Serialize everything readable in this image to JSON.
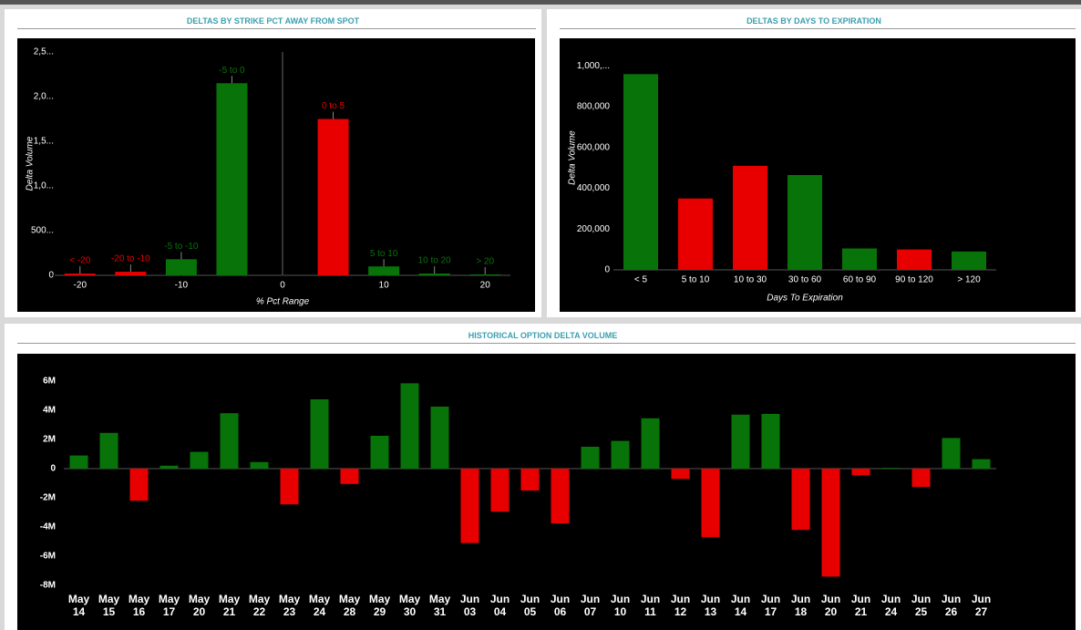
{
  "chart_data": [
    {
      "type": "bar",
      "title": "DELTAS BY STRIKE PCT AWAY FROM SPOT",
      "x_label": "% Pct Range",
      "y_label": "Delta Volume",
      "x": [
        -20,
        -15,
        -10,
        -5,
        5,
        10,
        15,
        20
      ],
      "bar_labels": [
        "< -20",
        "-20 to -10",
        "-5 to -10",
        "-5 to 0",
        "0 to 5",
        "5 to 10",
        "10 to 20",
        "> 20"
      ],
      "values": [
        20000,
        40000,
        180000,
        2150000,
        1750000,
        100000,
        20000,
        10000
      ],
      "colors": [
        "#e80000",
        "#e80000",
        "#087308",
        "#087308",
        "#e80000",
        "#087308",
        "#087308",
        "#087308"
      ],
      "xlim": [
        -22.5,
        22.5
      ],
      "xticks": [
        -20,
        -10,
        0,
        10,
        20
      ],
      "ylim": [
        0,
        2500000
      ],
      "yticks": [
        0,
        {
          "value": 500000,
          "label": "500..."
        },
        {
          "value": 1000000,
          "label": "1,0..."
        },
        {
          "value": 1500000,
          "label": "1,5..."
        },
        {
          "value": 2000000,
          "label": "2,0..."
        },
        {
          "value": 2500000,
          "label": "2,5..."
        }
      ]
    },
    {
      "type": "bar",
      "title": "DELTAS BY DAYS TO EXPIRATION",
      "x_label": "Days To Expiration",
      "y_label": "Delta Volume",
      "categories": [
        "< 5",
        "5 to 10",
        "10 to 30",
        "30 to 60",
        "60 to 90",
        "90 to 120",
        "> 120"
      ],
      "values": [
        960000,
        350000,
        510000,
        465000,
        105000,
        100000,
        90000
      ],
      "colors": [
        "#087308",
        "#e80000",
        "#e80000",
        "#087308",
        "#087308",
        "#e80000",
        "#087308"
      ],
      "ylim": [
        0,
        1100000
      ],
      "yticks": [
        0,
        {
          "value": 200000,
          "label": "200,000"
        },
        {
          "value": 400000,
          "label": "400,000"
        },
        {
          "value": 600000,
          "label": "600,000"
        },
        {
          "value": 800000,
          "label": "800,000"
        },
        {
          "value": 1000000,
          "label": "1,000,..."
        }
      ]
    },
    {
      "type": "bar",
      "title": "HISTORICAL OPTION DELTA VOLUME",
      "categories": [
        "May 14",
        "May 15",
        "May 16",
        "May 17",
        "May 20",
        "May 21",
        "May 22",
        "May 23",
        "May 24",
        "May 28",
        "May 29",
        "May 30",
        "May 31",
        "Jun 03",
        "Jun 04",
        "Jun 05",
        "Jun 06",
        "Jun 07",
        "Jun 10",
        "Jun 11",
        "Jun 12",
        "Jun 13",
        "Jun 14",
        "Jun 17",
        "Jun 18",
        "Jun 20",
        "Jun 21",
        "Jun 24",
        "Jun 25",
        "Jun 26",
        "Jun 27"
      ],
      "values": [
        900000,
        2450000,
        -2200000,
        200000,
        1150000,
        3800000,
        450000,
        -2450000,
        4750000,
        -1050000,
        2250000,
        5850000,
        4250000,
        -5100000,
        -2950000,
        -1500000,
        -3750000,
        1500000,
        1900000,
        3450000,
        -700000,
        -4700000,
        3700000,
        3750000,
        -4200000,
        -7400000,
        -450000,
        50000,
        -1250000,
        2100000,
        650000
      ],
      "colors": {
        "positive": "#087308",
        "negative": "#e80000"
      },
      "ylim": [
        -8000000,
        7500000
      ],
      "yticks": [
        {
          "value": -8000000,
          "label": "-8M"
        },
        {
          "value": -6000000,
          "label": "-6M"
        },
        {
          "value": -4000000,
          "label": "-4M"
        },
        {
          "value": -2000000,
          "label": "-2M"
        },
        0,
        {
          "value": 2000000,
          "label": "2M"
        },
        {
          "value": 4000000,
          "label": "4M"
        },
        {
          "value": 6000000,
          "label": "6M"
        }
      ]
    }
  ]
}
